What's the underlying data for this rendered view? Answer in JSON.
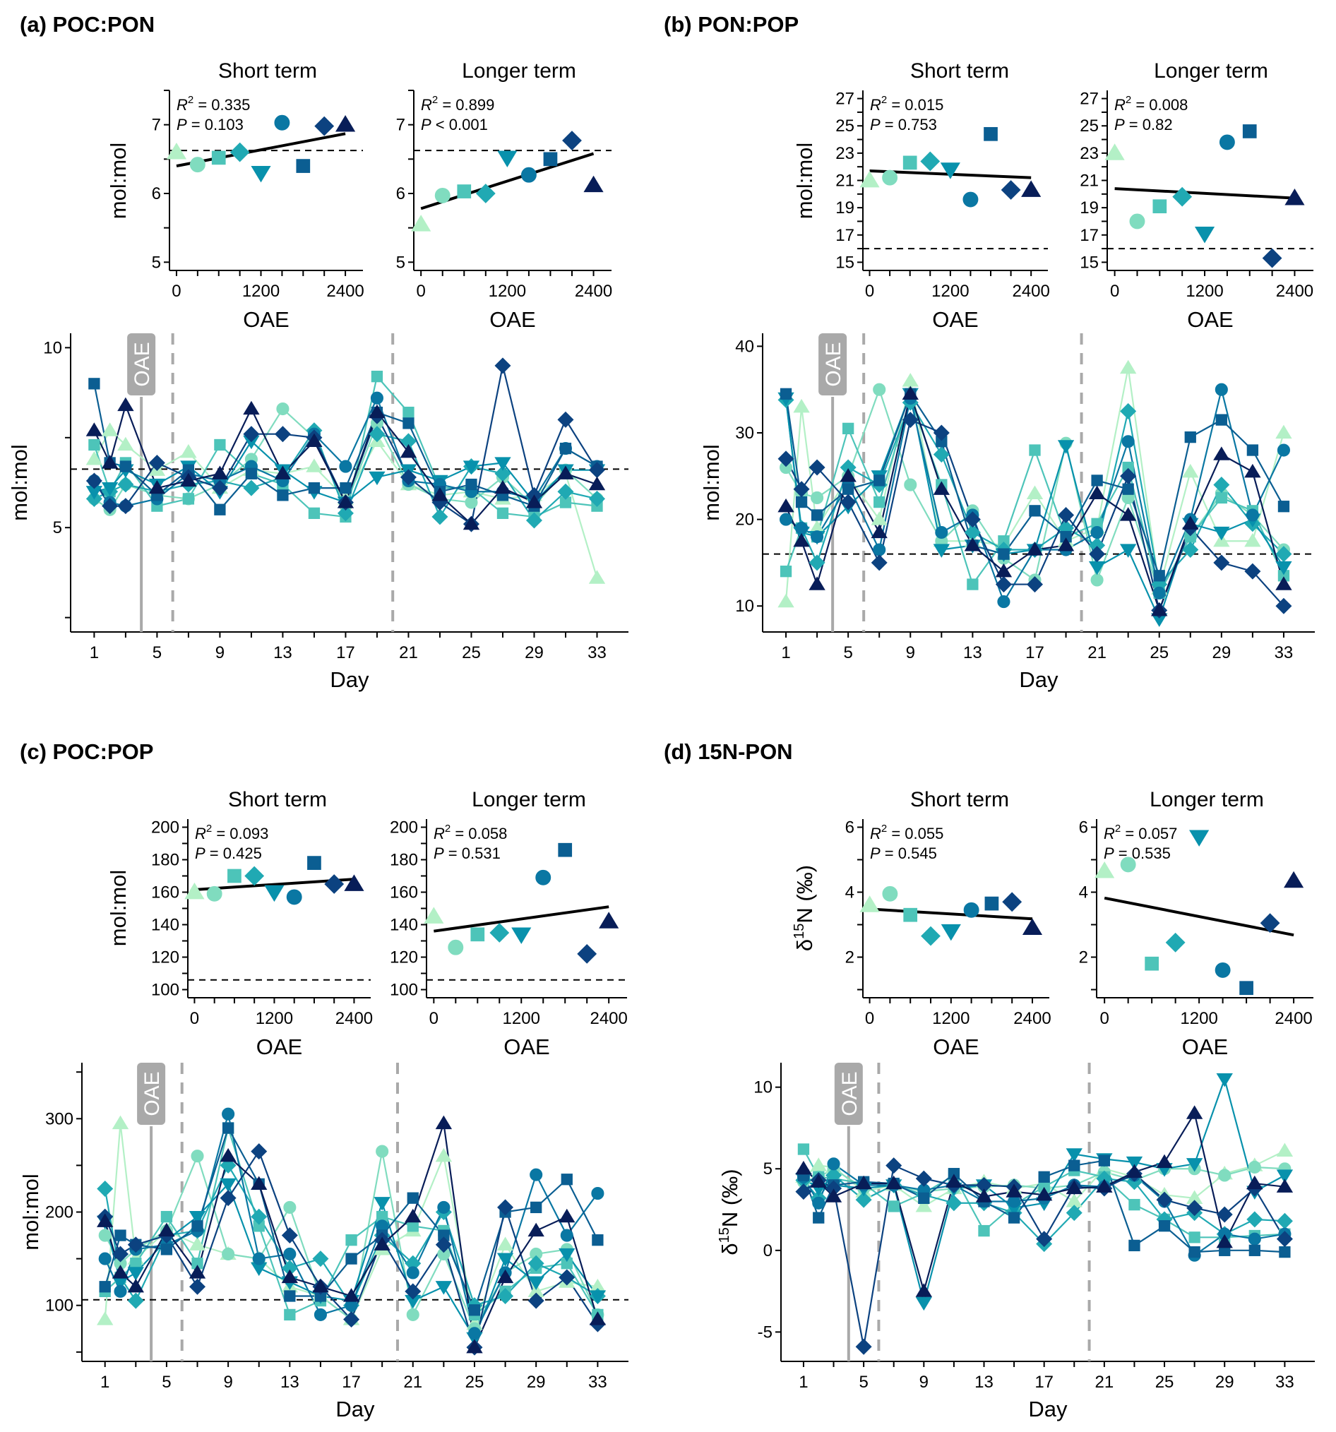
{
  "treatments": [
    {
      "oae": 0,
      "shape": "triangle",
      "color": "#b3f0c6"
    },
    {
      "oae": 300,
      "shape": "circle",
      "color": "#80dcbf"
    },
    {
      "oae": 600,
      "shape": "square",
      "color": "#4dc4b9"
    },
    {
      "oae": 900,
      "shape": "diamond",
      "color": "#20a9b3"
    },
    {
      "oae": 1200,
      "shape": "triangle-down",
      "color": "#0891ac"
    },
    {
      "oae": 1500,
      "shape": "circle",
      "color": "#0a77a3"
    },
    {
      "oae": 1800,
      "shape": "square",
      "color": "#0b5e92"
    },
    {
      "oae": 2100,
      "shape": "diamond",
      "color": "#0c4280"
    },
    {
      "oae": 2400,
      "shape": "triangle",
      "color": "#081d58"
    }
  ],
  "common": {
    "short_title": "Short term",
    "longer_title": "Longer term",
    "scatter_xlabel": "OAE",
    "scatter_xticks": [
      0,
      1200,
      2400
    ],
    "scatter_xlim": [
      -100,
      2650
    ],
    "ts_xlabel": "Day",
    "ts_xticks": [
      1,
      5,
      9,
      13,
      17,
      21,
      25,
      29,
      33
    ],
    "ts_xlim": [
      -0.5,
      35
    ],
    "days": [
      1,
      2,
      3,
      5,
      7,
      9,
      11,
      13,
      15,
      17,
      19,
      21,
      23,
      25,
      27,
      29,
      31,
      33
    ],
    "oae_label": "OAE",
    "oae_day": 4,
    "phase_days": [
      6,
      20
    ]
  },
  "chart_data": [
    {
      "id": "a",
      "label": "(a) POC:PON",
      "type": "scatter",
      "ylabel": "mol:mol",
      "redfield": 6.625,
      "short": {
        "r2_label": "R",
        "r2_value": " = 0.335",
        "p_label": "P",
        "p_value": " = 0.103",
        "ylim": [
          4.88,
          7.5
        ],
        "yticks": [
          5,
          6,
          7
        ],
        "yminor": [
          5.5,
          6.5,
          7.5
        ],
        "values": [
          6.6,
          6.42,
          6.52,
          6.6,
          6.3,
          7.03,
          6.4,
          6.98,
          7.0
        ],
        "fit": [
          6.4,
          6.87
        ]
      },
      "longer": {
        "r2_label": "R",
        "r2_value": " = 0.899",
        "p_label": "P",
        "p_value": " < 0.001",
        "ylim": [
          4.88,
          7.5
        ],
        "yticks": [
          5,
          6,
          7
        ],
        "yminor": [
          5.5,
          6.5,
          7.5
        ],
        "values": [
          5.55,
          5.97,
          6.03,
          6.0,
          6.52,
          6.27,
          6.5,
          6.77,
          6.12
        ],
        "fit": [
          5.78,
          6.58
        ]
      },
      "timeseries": {
        "ylim": [
          2.1,
          10.4
        ],
        "yticks": [
          5,
          10
        ],
        "yminor": [
          2.5,
          7.5
        ],
        "series": [
          [
            6.9,
            7.7,
            7.3,
            6.6,
            7.1,
            6.1,
            6.6,
            6.5,
            6.7,
            5.8,
            7.4,
            6.2,
            5.9,
            6.0,
            5.8,
            5.9,
            6.5,
            3.6
          ],
          [
            5.8,
            5.5,
            6.2,
            5.9,
            5.8,
            6.2,
            6.9,
            8.3,
            7.5,
            5.6,
            7.9,
            6.2,
            5.8,
            5.7,
            6.4,
            5.6,
            6.6,
            5.8
          ],
          [
            7.3,
            6.0,
            6.8,
            5.6,
            5.8,
            7.3,
            6.5,
            6.2,
            5.4,
            5.3,
            9.2,
            8.2,
            6.1,
            6.1,
            5.4,
            5.3,
            5.7,
            5.6
          ],
          [
            5.8,
            6.0,
            6.2,
            6.0,
            6.2,
            6.3,
            6.1,
            6.4,
            7.7,
            5.4,
            7.6,
            7.4,
            5.3,
            6.7,
            6.5,
            5.2,
            6.0,
            5.8
          ],
          [
            6.0,
            6.1,
            6.6,
            6.2,
            6.7,
            6.0,
            7.4,
            6.6,
            6.0,
            5.7,
            6.4,
            6.6,
            6.3,
            6.7,
            6.8,
            5.7,
            6.6,
            6.6
          ],
          [
            6.3,
            5.7,
            5.6,
            5.8,
            6.5,
            6.3,
            6.7,
            6.3,
            7.6,
            6.7,
            8.6,
            6.3,
            6.2,
            6.0,
            6.0,
            5.8,
            7.2,
            6.7
          ],
          [
            9.0,
            6.8,
            6.7,
            5.9,
            6.6,
            5.5,
            6.5,
            5.9,
            6.1,
            6.1,
            8.2,
            7.9,
            6.0,
            6.2,
            5.9,
            5.6,
            7.2,
            6.7
          ],
          [
            6.3,
            5.6,
            5.6,
            6.8,
            6.4,
            6.1,
            7.6,
            7.6,
            7.5,
            5.7,
            8.1,
            6.4,
            5.7,
            5.1,
            9.5,
            5.9,
            8.0,
            6.6
          ],
          [
            7.7,
            6.8,
            8.4,
            6.1,
            6.3,
            6.5,
            8.3,
            6.5,
            7.4,
            5.7,
            8.2,
            7.1,
            5.9,
            5.1,
            6.1,
            5.7,
            6.5,
            6.2
          ]
        ]
      }
    },
    {
      "id": "b",
      "label": "(b) PON:POP",
      "type": "scatter",
      "ylabel": "mol:mol",
      "redfield": 16,
      "short": {
        "r2_label": "R",
        "r2_value": " = 0.015",
        "p_label": "P",
        "p_value": " = 0.753",
        "ylim": [
          14.4,
          27.6
        ],
        "yticks": [
          15,
          17,
          19,
          21,
          23,
          25,
          27
        ],
        "yminor": [
          16,
          18,
          20,
          22,
          24,
          26
        ],
        "values": [
          21.0,
          21.2,
          22.3,
          22.4,
          21.8,
          19.6,
          24.4,
          20.3,
          20.3
        ],
        "fit": [
          21.7,
          21.2
        ]
      },
      "longer": {
        "r2_label": "R",
        "r2_value": " = 0.008",
        "p_label": "P",
        "p_value": " = 0.82",
        "ylim": [
          14.4,
          27.6
        ],
        "yticks": [
          15,
          17,
          19,
          21,
          23,
          25,
          27
        ],
        "yminor": [
          16,
          18,
          20,
          22,
          24,
          26
        ],
        "values": [
          23.0,
          18.0,
          19.1,
          19.8,
          17.1,
          23.8,
          24.6,
          15.3,
          19.7
        ],
        "fit": [
          20.4,
          19.7
        ]
      },
      "timeseries": {
        "ylim": [
          7,
          41.5
        ],
        "yticks": [
          10,
          20,
          30,
          40
        ],
        "yminor": [],
        "series": [
          [
            10.5,
            33.0,
            19.0,
            25.0,
            20.0,
            36.0,
            17.5,
            17.5,
            17.0,
            23.0,
            17.5,
            19.0,
            37.5,
            12.0,
            25.5,
            17.5,
            17.5,
            30.0
          ],
          [
            26.0,
            23.0,
            22.5,
            25.0,
            35.0,
            24.0,
            17.5,
            21.0,
            15.5,
            13.0,
            28.8,
            13.0,
            22.5,
            11.5,
            18.0,
            23.0,
            20.5,
            16.5
          ],
          [
            14.0,
            19.0,
            18.0,
            30.5,
            22.0,
            34.0,
            24.0,
            12.5,
            17.5,
            28.0,
            18.0,
            19.5,
            26.0,
            11.5,
            18.0,
            22.5,
            21.0,
            13.5
          ],
          [
            33.8,
            19.0,
            15.0,
            26.0,
            24.0,
            33.5,
            27.5,
            18.5,
            16.5,
            16.5,
            19.0,
            17.0,
            32.5,
            12.5,
            16.5,
            24.0,
            19.5,
            16.0
          ],
          [
            34.0,
            18.5,
            18.0,
            21.5,
            25.0,
            34.5,
            16.5,
            17.0,
            16.0,
            16.5,
            28.5,
            14.5,
            16.5,
            8.5,
            19.5,
            18.5,
            20.0,
            14.5
          ],
          [
            20.0,
            19.0,
            18.0,
            24.0,
            16.5,
            34.0,
            18.5,
            20.5,
            10.5,
            16.5,
            16.5,
            18.5,
            29.0,
            11.5,
            20.0,
            35.0,
            20.5,
            28.0
          ],
          [
            34.5,
            22.0,
            20.5,
            23.5,
            24.5,
            34.5,
            29.0,
            17.0,
            16.0,
            21.0,
            18.0,
            24.5,
            23.5,
            13.5,
            29.5,
            31.5,
            28.0,
            21.5
          ],
          [
            27.0,
            23.5,
            26.0,
            22.0,
            15.0,
            31.5,
            30.0,
            20.0,
            12.5,
            12.5,
            20.5,
            16.0,
            25.0,
            9.5,
            19.0,
            15.0,
            14.0,
            10.0
          ],
          [
            21.5,
            17.5,
            12.5,
            25.0,
            18.5,
            34.5,
            23.5,
            17.0,
            14.0,
            16.5,
            17.0,
            23.0,
            20.5,
            9.5,
            19.5,
            27.5,
            25.5,
            12.5
          ]
        ]
      }
    },
    {
      "id": "c",
      "label": "(c) POC:POP",
      "type": "scatter",
      "ylabel": "mol:mol",
      "redfield": 106,
      "short": {
        "r2_label": "R",
        "r2_value": " = 0.093",
        "p_label": "P",
        "p_value": " = 0.425",
        "ylim": [
          95,
          205
        ],
        "yticks": [
          100,
          120,
          140,
          160,
          180,
          200
        ],
        "yminor": [
          110,
          130,
          150,
          170,
          190
        ],
        "values": [
          160,
          159,
          170,
          170,
          160,
          157,
          178,
          165,
          165
        ],
        "fit": [
          161.5,
          168
        ]
      },
      "longer": {
        "r2_label": "R",
        "r2_value": " = 0.058",
        "p_label": "P",
        "p_value": " = 0.531",
        "ylim": [
          95,
          205
        ],
        "yticks": [
          100,
          120,
          140,
          160,
          180,
          200
        ],
        "yminor": [
          110,
          130,
          150,
          170,
          190
        ],
        "values": [
          145,
          126,
          134,
          135,
          134,
          169,
          186,
          122,
          142
        ],
        "fit": [
          136,
          151
        ]
      },
      "timeseries": {
        "ylim": [
          40,
          360
        ],
        "yticks": [
          100,
          200,
          300
        ],
        "yminor": [
          50,
          150,
          250,
          350
        ],
        "series": [
          [
            85,
            295,
            150,
            180,
            165,
            155,
            150,
            120,
            110,
            85,
            160,
            180,
            260,
            80,
            165,
            115,
            125,
            120
          ],
          [
            175,
            145,
            160,
            180,
            260,
            155,
            150,
            205,
            110,
            85,
            265,
            90,
            155,
            75,
            135,
            155,
            160,
            90
          ],
          [
            115,
            130,
            145,
            195,
            145,
            290,
            185,
            90,
            105,
            170,
            195,
            185,
            180,
            90,
            115,
            140,
            145,
            90
          ],
          [
            225,
            130,
            105,
            175,
            180,
            250,
            195,
            140,
            150,
            100,
            175,
            145,
            200,
            100,
            110,
            145,
            130,
            110
          ],
          [
            190,
            125,
            135,
            170,
            195,
            230,
            140,
            125,
            110,
            105,
            210,
            105,
            120,
            65,
            150,
            125,
            155,
            110
          ],
          [
            150,
            115,
            160,
            165,
            180,
            305,
            150,
            155,
            90,
            100,
            185,
            135,
            205,
            70,
            135,
            240,
            175,
            220
          ],
          [
            120,
            175,
            165,
            160,
            185,
            290,
            230,
            110,
            110,
            150,
            175,
            215,
            175,
            95,
            200,
            205,
            235,
            170
          ],
          [
            195,
            155,
            165,
            175,
            120,
            215,
            265,
            175,
            120,
            85,
            170,
            115,
            165,
            55,
            205,
            105,
            130,
            80
          ],
          [
            190,
            135,
            120,
            180,
            135,
            260,
            230,
            130,
            120,
            110,
            165,
            195,
            295,
            55,
            130,
            180,
            195,
            85
          ]
        ]
      }
    },
    {
      "id": "d",
      "label": "(d) 15N-PON",
      "type": "scatter",
      "ylabel_prefix": "δ",
      "ylabel_sup": "15",
      "ylabel_suffix": "N (‰)",
      "redfield": null,
      "short": {
        "r2_label": "R",
        "r2_value": " = 0.055",
        "p_label": "P",
        "p_value": " = 0.545",
        "ylim": [
          0.75,
          6.25
        ],
        "yticks": [
          2,
          4,
          6
        ],
        "yminor": [
          1,
          3,
          5
        ],
        "values": [
          3.6,
          3.95,
          3.3,
          2.65,
          2.8,
          3.45,
          3.65,
          3.7,
          2.9
        ],
        "fit": [
          3.48,
          3.18
        ]
      },
      "longer": {
        "r2_label": "R",
        "r2_value": " = 0.057",
        "p_label": "P",
        "p_value": " = 0.535",
        "ylim": [
          0.75,
          6.25
        ],
        "yticks": [
          2,
          4,
          6
        ],
        "yminor": [
          1,
          3,
          5
        ],
        "values": [
          4.65,
          4.85,
          1.8,
          2.45,
          5.7,
          1.6,
          1.05,
          3.05,
          4.35
        ],
        "fit": [
          3.82,
          2.68
        ]
      },
      "timeseries": {
        "ylim": [
          -6.8,
          11.5
        ],
        "yticks": [
          -5,
          0,
          5,
          10
        ],
        "yminor": [],
        "series": [
          [
            4.5,
            5.2,
            5.1,
            3.6,
            4.0,
            2.7,
            3.8,
            4.2,
            3.8,
            4.1,
            3.0,
            5.0,
            4.5,
            3.4,
            3.2,
            4.7,
            5.2,
            6.1
          ],
          [
            4.2,
            4.5,
            5.0,
            3.8,
            4.0,
            3.6,
            3.8,
            3.9,
            4.0,
            3.8,
            4.0,
            4.8,
            4.3,
            5.0,
            5.0,
            4.6,
            5.1,
            5.0
          ],
          [
            6.2,
            4.5,
            4.4,
            4.1,
            2.7,
            3.5,
            4.6,
            1.2,
            2.8,
            3.9,
            4.9,
            4.5,
            2.8,
            1.9,
            0.8,
            0.8,
            0.9,
            1.0
          ],
          [
            4.3,
            3.2,
            4.6,
            3.1,
            4.0,
            3.4,
            2.9,
            2.9,
            2.3,
            0.4,
            2.3,
            4.4,
            4.2,
            1.9,
            2.3,
            1.0,
            1.9,
            1.8
          ],
          [
            4.4,
            3.8,
            4.0,
            3.8,
            4.0,
            -3.2,
            3.8,
            4.0,
            2.6,
            2.9,
            5.9,
            5.6,
            5.4,
            5.0,
            5.3,
            10.5,
            3.6,
            4.6
          ],
          [
            4.5,
            2.9,
            5.3,
            4.0,
            4.0,
            3.7,
            4.0,
            3.0,
            3.0,
            3.2,
            4.0,
            3.9,
            4.6,
            3.0,
            -0.3,
            1.0,
            0.7,
            1.0
          ],
          [
            4.6,
            2.0,
            4.0,
            4.2,
            4.1,
            3.2,
            4.7,
            3.0,
            2.0,
            4.5,
            5.2,
            5.5,
            0.3,
            1.5,
            -0.1,
            0.0,
            0.0,
            -0.1
          ],
          [
            3.6,
            4.3,
            3.8,
            -5.9,
            5.2,
            4.4,
            4.0,
            4.0,
            3.9,
            0.7,
            3.9,
            3.8,
            4.7,
            3.1,
            2.6,
            2.2,
            3.8,
            0.7
          ],
          [
            5.0,
            4.2,
            3.3,
            4.1,
            4.1,
            -2.5,
            4.2,
            3.3,
            3.6,
            3.4,
            3.8,
            3.9,
            4.8,
            5.4,
            8.4,
            0.5,
            4.1,
            3.9
          ]
        ]
      }
    }
  ]
}
